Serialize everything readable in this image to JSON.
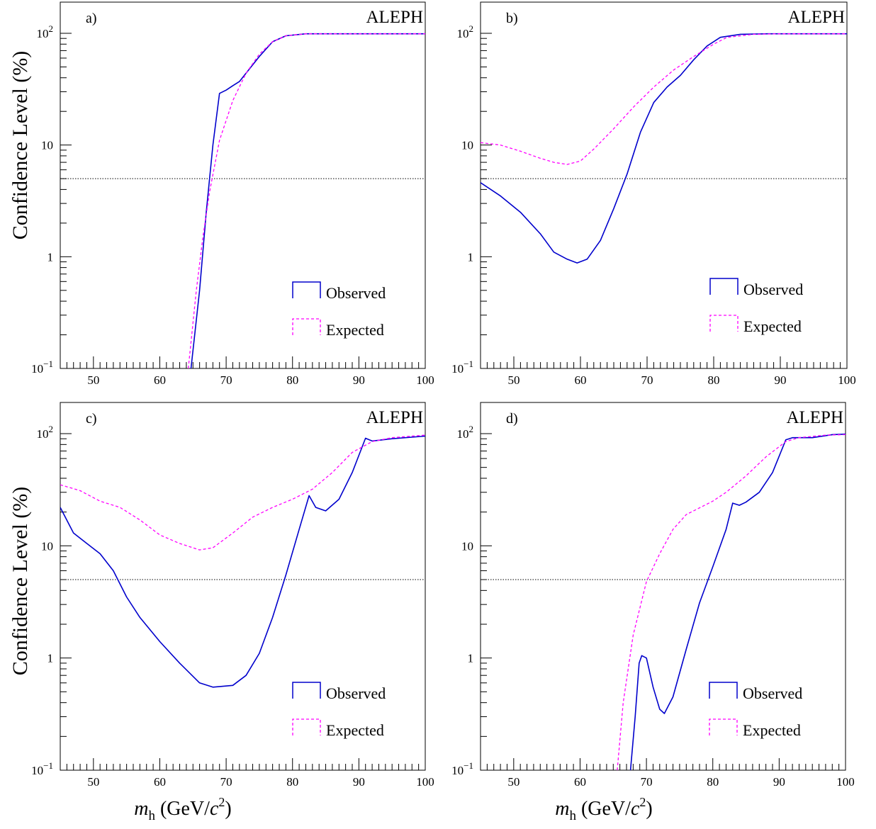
{
  "figure": {
    "ylabel": "Confidence Level (%)",
    "xlabel_symbol": "m",
    "xlabel_sub": "h",
    "xlabel_units_prefix": " (GeV/",
    "xlabel_units_c": "c",
    "xlabel_units_exp": "2",
    "xlabel_units_suffix": ")"
  },
  "legend": {
    "observed": "Observed",
    "expected": "Expected"
  },
  "colors": {
    "observed": "#0000cc",
    "expected": "#ff00ff",
    "threshold": "#000000"
  },
  "chart_data": [
    {
      "type": "line",
      "panel_label": "a)",
      "experiment": "ALEPH",
      "xlabel": "",
      "ylabel": "Confidence Level (%)",
      "xlim": [
        45,
        100
      ],
      "ylim": [
        0.1,
        100
      ],
      "yscale": "log",
      "x_ticks": [
        "50",
        "60",
        "70",
        "80",
        "90",
        "100"
      ],
      "y_ticks": [
        {
          "v": 0.1,
          "base": "10",
          "exp": "−1"
        },
        {
          "v": 1,
          "base": "1",
          "exp": ""
        },
        {
          "v": 10,
          "base": "10",
          "exp": ""
        },
        {
          "v": 100,
          "base": "10",
          "exp": "2"
        }
      ],
      "threshold": 5,
      "legend_position": "bottom-right",
      "series": [
        {
          "name": "Observed",
          "style": "solid",
          "points": [
            [
              64.7,
              0.1
            ],
            [
              66,
              0.5
            ],
            [
              67,
              2.5
            ],
            [
              68,
              10
            ],
            [
              69,
              29
            ],
            [
              70,
              31
            ],
            [
              71,
              34
            ],
            [
              72,
              37
            ],
            [
              73,
              44
            ],
            [
              75,
              62
            ],
            [
              77,
              84
            ],
            [
              79,
              95
            ],
            [
              82,
              99
            ],
            [
              100,
              99
            ]
          ]
        },
        {
          "name": "Expected",
          "style": "dashed",
          "points": [
            [
              64.3,
              0.1
            ],
            [
              65.5,
              0.5
            ],
            [
              66.5,
              1.5
            ],
            [
              67.5,
              3.8
            ],
            [
              69,
              11
            ],
            [
              71,
              25
            ],
            [
              73,
              44
            ],
            [
              75,
              65
            ],
            [
              77,
              84
            ],
            [
              79,
              95
            ],
            [
              82,
              99
            ],
            [
              100,
              99
            ]
          ]
        }
      ]
    },
    {
      "type": "line",
      "panel_label": "b)",
      "experiment": "ALEPH",
      "xlabel": "",
      "ylabel": "",
      "xlim": [
        45,
        100
      ],
      "ylim": [
        0.1,
        100
      ],
      "yscale": "log",
      "x_ticks": [
        "50",
        "60",
        "70",
        "80",
        "90",
        "100"
      ],
      "y_ticks": [
        {
          "v": 0.1,
          "base": "10",
          "exp": "−1"
        },
        {
          "v": 1,
          "base": "1",
          "exp": ""
        },
        {
          "v": 10,
          "base": "10",
          "exp": ""
        },
        {
          "v": 100,
          "base": "10",
          "exp": "2"
        }
      ],
      "threshold": 5,
      "legend_position": "bottom-right",
      "series": [
        {
          "name": "Observed",
          "style": "solid",
          "points": [
            [
              45,
              4.6
            ],
            [
              48,
              3.5
            ],
            [
              51,
              2.5
            ],
            [
              54,
              1.6
            ],
            [
              56,
              1.1
            ],
            [
              58,
              0.95
            ],
            [
              59.5,
              0.88
            ],
            [
              61,
              0.95
            ],
            [
              63,
              1.4
            ],
            [
              65,
              2.7
            ],
            [
              67,
              5.5
            ],
            [
              69,
              13
            ],
            [
              71,
              24
            ],
            [
              73,
              33
            ],
            [
              75,
              42
            ],
            [
              77,
              58
            ],
            [
              79,
              77
            ],
            [
              81,
              92
            ],
            [
              84,
              98
            ],
            [
              88,
              99
            ],
            [
              100,
              99
            ]
          ]
        },
        {
          "name": "Expected",
          "style": "dashed",
          "points": [
            [
              45,
              10.5
            ],
            [
              48,
              10
            ],
            [
              51,
              8.8
            ],
            [
              54,
              7.6
            ],
            [
              56,
              7
            ],
            [
              58,
              6.7
            ],
            [
              60,
              7.2
            ],
            [
              62,
              9.2
            ],
            [
              65,
              14
            ],
            [
              68,
              22
            ],
            [
              71,
              33
            ],
            [
              74,
              47
            ],
            [
              77,
              62
            ],
            [
              80,
              80
            ],
            [
              82,
              92
            ],
            [
              86,
              98
            ],
            [
              90,
              99
            ],
            [
              100,
              99
            ]
          ]
        }
      ]
    },
    {
      "type": "line",
      "panel_label": "c)",
      "experiment": "ALEPH",
      "xlabel": "m_h (GeV/c^2)",
      "ylabel": "Confidence Level (%)",
      "xlim": [
        45,
        100
      ],
      "ylim": [
        0.1,
        100
      ],
      "yscale": "log",
      "x_ticks": [
        "50",
        "60",
        "70",
        "80",
        "90",
        "100"
      ],
      "y_ticks": [
        {
          "v": 0.1,
          "base": "10",
          "exp": "−1"
        },
        {
          "v": 1,
          "base": "1",
          "exp": ""
        },
        {
          "v": 10,
          "base": "10",
          "exp": ""
        },
        {
          "v": 100,
          "base": "10",
          "exp": "2"
        }
      ],
      "threshold": 5,
      "legend_position": "bottom-right",
      "series": [
        {
          "name": "Observed",
          "style": "solid",
          "points": [
            [
              45,
              22
            ],
            [
              47,
              13
            ],
            [
              49,
              10.5
            ],
            [
              51,
              8.5
            ],
            [
              53,
              6
            ],
            [
              55,
              3.5
            ],
            [
              57,
              2.3
            ],
            [
              60,
              1.4
            ],
            [
              63,
              0.9
            ],
            [
              66,
              0.6
            ],
            [
              68,
              0.55
            ],
            [
              71,
              0.57
            ],
            [
              73,
              0.7
            ],
            [
              75,
              1.1
            ],
            [
              77,
              2.3
            ],
            [
              79,
              5.5
            ],
            [
              81,
              14
            ],
            [
              82.5,
              28
            ],
            [
              83.5,
              22
            ],
            [
              85,
              20.5
            ],
            [
              87,
              26
            ],
            [
              89,
              45
            ],
            [
              91,
              91
            ],
            [
              92,
              86
            ],
            [
              95,
              90
            ],
            [
              100,
              95
            ]
          ]
        },
        {
          "name": "Expected",
          "style": "dashed",
          "points": [
            [
              45,
              35
            ],
            [
              48,
              31
            ],
            [
              51,
              25
            ],
            [
              54,
              22
            ],
            [
              57,
              17
            ],
            [
              60,
              12.5
            ],
            [
              63,
              10.5
            ],
            [
              66,
              9.2
            ],
            [
              68,
              9.6
            ],
            [
              71,
              13
            ],
            [
              74,
              18
            ],
            [
              77,
              22
            ],
            [
              80,
              26
            ],
            [
              83,
              32
            ],
            [
              86,
              45
            ],
            [
              89,
              68
            ],
            [
              92,
              85
            ],
            [
              95,
              92
            ],
            [
              100,
              97
            ]
          ]
        }
      ]
    },
    {
      "type": "line",
      "panel_label": "d)",
      "experiment": "ALEPH",
      "xlabel": "m_h (GeV/c^2)",
      "ylabel": "",
      "xlim": [
        45,
        100
      ],
      "ylim": [
        0.1,
        100
      ],
      "yscale": "log",
      "x_ticks": [
        "50",
        "60",
        "70",
        "80",
        "90",
        "100"
      ],
      "y_ticks": [
        {
          "v": 0.1,
          "base": "10",
          "exp": "−1"
        },
        {
          "v": 1,
          "base": "1",
          "exp": ""
        },
        {
          "v": 10,
          "base": "10",
          "exp": ""
        },
        {
          "v": 100,
          "base": "10",
          "exp": "2"
        }
      ],
      "threshold": 5,
      "legend_position": "bottom-right",
      "series": [
        {
          "name": "Observed",
          "style": "solid",
          "points": [
            [
              67.6,
              0.1
            ],
            [
              68.3,
              0.3
            ],
            [
              68.9,
              0.9
            ],
            [
              69.3,
              1.05
            ],
            [
              70,
              1.0
            ],
            [
              71,
              0.55
            ],
            [
              72,
              0.35
            ],
            [
              72.7,
              0.32
            ],
            [
              74,
              0.45
            ],
            [
              76,
              1.2
            ],
            [
              78,
              3.1
            ],
            [
              80,
              6.5
            ],
            [
              82,
              14
            ],
            [
              83,
              24
            ],
            [
              84,
              23
            ],
            [
              85,
              24.5
            ],
            [
              87,
              30
            ],
            [
              89,
              45
            ],
            [
              91,
              88
            ],
            [
              92,
              92
            ],
            [
              95,
              92
            ],
            [
              98,
              98
            ],
            [
              100,
              99
            ]
          ]
        },
        {
          "name": "Expected",
          "style": "dashed",
          "points": [
            [
              65.6,
              0.1
            ],
            [
              66.5,
              0.4
            ],
            [
              68,
              1.6
            ],
            [
              70,
              4.8
            ],
            [
              72,
              8.5
            ],
            [
              74,
              14
            ],
            [
              76,
              19
            ],
            [
              80,
              25
            ],
            [
              82,
              30
            ],
            [
              85,
              42
            ],
            [
              88,
              62
            ],
            [
              91,
              85
            ],
            [
              93,
              92
            ],
            [
              97,
              97
            ],
            [
              100,
              98
            ]
          ]
        }
      ]
    }
  ]
}
